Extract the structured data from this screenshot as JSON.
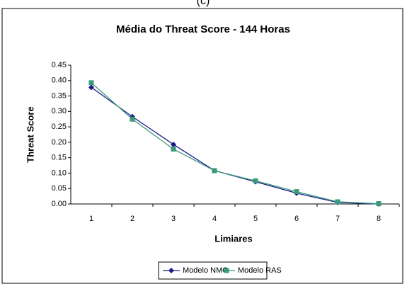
{
  "caption": "(c)",
  "chart_data": {
    "type": "line",
    "title": "Média do Threat Score - 144 Horas",
    "x_label": "Limiares",
    "y_label": "Threat Score",
    "categories": [
      "1",
      "2",
      "3",
      "4",
      "5",
      "6",
      "7",
      "8"
    ],
    "series": [
      {
        "name": "Modelo NMC",
        "color": "#1a1a8c",
        "marker": "diamond",
        "values": [
          0.378,
          0.283,
          0.193,
          0.108,
          0.072,
          0.035,
          0.005,
          0.0
        ]
      },
      {
        "name": "Modelo RAS",
        "color": "#3a9a78",
        "marker": "square",
        "values": [
          0.393,
          0.275,
          0.178,
          0.108,
          0.075,
          0.04,
          0.007,
          0.001
        ]
      }
    ],
    "ylim": [
      0,
      0.45
    ],
    "yticks": [
      {
        "value": 0,
        "label": "0.00"
      },
      {
        "value": 0.05,
        "label": "0.05"
      },
      {
        "value": 0.1,
        "label": "0.10"
      },
      {
        "value": 0.15,
        "label": "0.15"
      },
      {
        "value": 0.2,
        "label": "0.20"
      },
      {
        "value": 0.25,
        "label": "0.25"
      },
      {
        "value": 0.3,
        "label": "0.30"
      },
      {
        "value": 0.35,
        "label": "0.35"
      },
      {
        "value": 0.4,
        "label": "0.40"
      },
      {
        "value": 0.45,
        "label": "0.45"
      }
    ],
    "legend": "bottom"
  }
}
